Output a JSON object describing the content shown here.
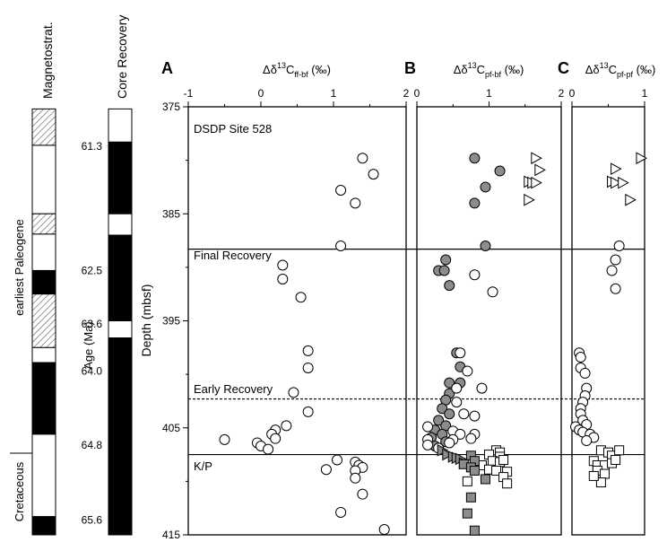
{
  "figure": {
    "left_strip": {
      "magnetostrat_label": "Magnetostrat.",
      "core_recovery_label": "Core Recovery",
      "paleogene_label": "earliest Paleogene",
      "cretaceous_label": "Cretaceous",
      "age_label": "Age (Ma)",
      "ages": [
        "61.3",
        "62.5",
        "63.6",
        "64.0",
        "64.8",
        "65.6"
      ]
    },
    "y_axis": {
      "label": "Depth (mbsf)",
      "ticks": [
        "375",
        "385",
        "395",
        "405",
        "415"
      ]
    },
    "annotations": {
      "site": "DSDP Site 528",
      "final_recovery": "Final Recovery",
      "early_recovery": "Early Recovery",
      "kp": "K/P"
    },
    "panels": [
      {
        "letter": "A",
        "title_main": "Δδ",
        "title_sup": "13",
        "title_c": "C",
        "title_sub": "ff-bf",
        "title_unit": " (‰)",
        "ticks": [
          "-1",
          "0",
          "1",
          "2"
        ]
      },
      {
        "letter": "B",
        "title_main": "Δδ",
        "title_sup": "13",
        "title_c": "C",
        "title_sub": "pf-bf",
        "title_unit": " (‰)",
        "ticks": [
          "0",
          "1",
          "2"
        ]
      },
      {
        "letter": "C",
        "title_main": "Δδ",
        "title_sup": "13",
        "title_c": "C",
        "title_sub": "pf-pf",
        "title_unit": " (‰)",
        "ticks": [
          "0",
          "1"
        ]
      }
    ]
  },
  "colors": {
    "gray_fill": "#8c8c8c",
    "hatch": "#555555",
    "black": "#000000",
    "white": "#ffffff"
  },
  "chart_data": {
    "type": "scatter",
    "ylim": [
      375,
      415
    ],
    "y_inverted": true,
    "horizontal_lines": [
      {
        "depth": 388.3,
        "style": "solid",
        "label": "Final Recovery"
      },
      {
        "depth": 402.3,
        "style": "dashed",
        "label": "Early Recovery"
      },
      {
        "depth": 407.5,
        "style": "solid",
        "label": "K/P"
      }
    ],
    "age_depths": [
      {
        "age": "61.3",
        "depth": 378.7
      },
      {
        "age": "62.5",
        "depth": 390.3
      },
      {
        "age": "63.6",
        "depth": 395.3
      },
      {
        "age": "64.0",
        "depth": 399.7
      },
      {
        "age": "64.8",
        "depth": 406.6
      },
      {
        "age": "65.6",
        "depth": 413.6
      }
    ],
    "magnetostrat": [
      {
        "top": 375.2,
        "bottom": 378.6,
        "state": "hatched"
      },
      {
        "top": 378.6,
        "bottom": 385.0,
        "state": "white"
      },
      {
        "top": 385.0,
        "bottom": 386.9,
        "state": "hatched"
      },
      {
        "top": 386.9,
        "bottom": 390.3,
        "state": "white"
      },
      {
        "top": 390.3,
        "bottom": 392.5,
        "state": "black"
      },
      {
        "top": 392.5,
        "bottom": 397.5,
        "state": "hatched"
      },
      {
        "top": 397.5,
        "bottom": 398.9,
        "state": "white"
      },
      {
        "top": 398.9,
        "bottom": 405.6,
        "state": "black"
      },
      {
        "top": 405.6,
        "bottom": 413.3,
        "state": "white"
      },
      {
        "top": 413.3,
        "bottom": 415.0,
        "state": "black"
      }
    ],
    "core_recovery": [
      {
        "top": 375.2,
        "bottom": 378.3,
        "state": "white"
      },
      {
        "top": 378.3,
        "bottom": 385.0,
        "state": "black"
      },
      {
        "top": 385.0,
        "bottom": 387.0,
        "state": "white"
      },
      {
        "top": 387.0,
        "bottom": 395.0,
        "state": "black"
      },
      {
        "top": 395.0,
        "bottom": 396.6,
        "state": "white"
      },
      {
        "top": 396.6,
        "bottom": 415.0,
        "state": "black"
      }
    ],
    "panels": [
      {
        "id": "A",
        "xlim": [
          -1,
          2
        ],
        "series": [
          {
            "marker": "circle",
            "fill": "white",
            "points": [
              [
                1.4,
                379.8
              ],
              [
                1.55,
                381.3
              ],
              [
                1.1,
                382.8
              ],
              [
                1.3,
                384.0
              ],
              [
                1.1,
                388.0
              ],
              [
                0.3,
                389.8
              ],
              [
                0.3,
                391.1
              ],
              [
                0.55,
                392.8
              ],
              [
                0.65,
                397.8
              ],
              [
                0.65,
                399.4
              ],
              [
                0.45,
                401.7
              ],
              [
                0.65,
                403.5
              ],
              [
                0.35,
                404.8
              ],
              [
                0.2,
                405.2
              ],
              [
                0.15,
                405.6
              ],
              [
                0.2,
                406.0
              ],
              [
                -0.5,
                406.1
              ],
              [
                -0.05,
                406.4
              ],
              [
                0.0,
                406.7
              ],
              [
                0.1,
                407.0
              ],
              [
                1.05,
                408.0
              ],
              [
                1.3,
                408.2
              ],
              [
                1.35,
                408.5
              ],
              [
                1.4,
                408.7
              ],
              [
                0.9,
                408.9
              ],
              [
                1.3,
                409.0
              ],
              [
                1.3,
                409.7
              ],
              [
                1.4,
                411.2
              ],
              [
                1.1,
                412.9
              ],
              [
                1.7,
                414.5
              ]
            ]
          }
        ]
      },
      {
        "id": "B",
        "xlim": [
          0,
          2
        ],
        "series": [
          {
            "marker": "circle",
            "fill": "gray",
            "points": [
              [
                0.8,
                379.8
              ],
              [
                1.15,
                381.0
              ],
              [
                0.95,
                382.5
              ],
              [
                0.8,
                384.0
              ],
              [
                0.95,
                388.0
              ],
              [
                0.4,
                389.3
              ],
              [
                0.3,
                390.3
              ],
              [
                0.38,
                390.3
              ],
              [
                0.45,
                391.7
              ],
              [
                0.55,
                398.0
              ],
              [
                0.6,
                399.3
              ],
              [
                0.45,
                400.8
              ],
              [
                0.6,
                400.8
              ],
              [
                0.45,
                401.8
              ],
              [
                0.4,
                402.4
              ],
              [
                0.35,
                403.2
              ],
              [
                0.45,
                403.7
              ],
              [
                0.3,
                404.3
              ],
              [
                0.4,
                404.8
              ],
              [
                0.25,
                405.2
              ],
              [
                0.35,
                405.6
              ],
              [
                0.2,
                405.9
              ],
              [
                0.4,
                406.3
              ],
              [
                0.25,
                406.7
              ]
            ]
          },
          {
            "marker": "circle",
            "fill": "white",
            "points": [
              [
                0.8,
                390.7
              ],
              [
                1.05,
                392.3
              ],
              [
                0.6,
                398.0
              ],
              [
                0.7,
                399.7
              ],
              [
                0.55,
                401.3
              ],
              [
                0.9,
                401.3
              ],
              [
                0.55,
                402.6
              ],
              [
                0.65,
                403.7
              ],
              [
                0.8,
                403.9
              ],
              [
                0.15,
                404.9
              ],
              [
                0.5,
                405.3
              ],
              [
                0.6,
                405.6
              ],
              [
                0.8,
                405.6
              ],
              [
                0.75,
                406.0
              ],
              [
                0.15,
                406.1
              ],
              [
                0.5,
                406.1
              ],
              [
                0.45,
                406.4
              ],
              [
                0.15,
                406.6
              ],
              [
                0.3,
                406.9
              ]
            ]
          },
          {
            "marker": "triangle",
            "fill": "white",
            "points": [
              [
                1.65,
                379.8
              ],
              [
                1.7,
                380.9
              ],
              [
                1.55,
                382.0
              ],
              [
                1.6,
                382.1
              ],
              [
                1.65,
                382.1
              ],
              [
                1.55,
                383.7
              ]
            ]
          },
          {
            "marker": "triangle",
            "fill": "gray",
            "points": [
              [
                0.35,
                407.1
              ],
              [
                0.42,
                407.5
              ],
              [
                0.5,
                407.7
              ],
              [
                0.55,
                407.8
              ],
              [
                0.6,
                407.9
              ],
              [
                0.65,
                408.3
              ]
            ]
          },
          {
            "marker": "square",
            "fill": "white",
            "points": [
              [
                1.1,
                407.1
              ],
              [
                1.15,
                407.3
              ],
              [
                1.0,
                407.5
              ],
              [
                1.15,
                407.7
              ],
              [
                1.05,
                408.1
              ],
              [
                1.15,
                408.2
              ],
              [
                1.2,
                408.0
              ],
              [
                0.9,
                408.5
              ],
              [
                1.0,
                408.9
              ],
              [
                1.1,
                409.0
              ],
              [
                1.25,
                409.1
              ],
              [
                1.2,
                409.6
              ],
              [
                1.25,
                410.2
              ],
              [
                0.7,
                410.0
              ]
            ]
          },
          {
            "marker": "square",
            "fill": "gray",
            "points": [
              [
                0.75,
                407.6
              ],
              [
                0.8,
                408.1
              ],
              [
                0.65,
                408.4
              ],
              [
                0.75,
                408.7
              ],
              [
                0.8,
                409.0
              ],
              [
                0.95,
                409.8
              ],
              [
                0.75,
                411.5
              ],
              [
                0.7,
                413.0
              ],
              [
                0.8,
                414.6
              ]
            ]
          }
        ]
      },
      {
        "id": "C",
        "xlim": [
          0,
          1
        ],
        "series": [
          {
            "marker": "triangle",
            "fill": "white",
            "points": [
              [
                0.95,
                379.8
              ],
              [
                0.6,
                380.8
              ],
              [
                0.55,
                382.0
              ],
              [
                0.6,
                382.1
              ],
              [
                0.7,
                382.1
              ],
              [
                0.8,
                383.7
              ]
            ]
          },
          {
            "marker": "circle",
            "fill": "white",
            "points": [
              [
                0.65,
                388.0
              ],
              [
                0.6,
                389.3
              ],
              [
                0.55,
                390.3
              ],
              [
                0.6,
                392.0
              ],
              [
                0.1,
                398.0
              ],
              [
                0.12,
                398.4
              ],
              [
                0.12,
                399.4
              ],
              [
                0.18,
                399.9
              ],
              [
                0.2,
                401.3
              ],
              [
                0.18,
                402.0
              ],
              [
                0.15,
                402.6
              ],
              [
                0.12,
                403.2
              ],
              [
                0.12,
                403.7
              ],
              [
                0.15,
                404.3
              ],
              [
                0.2,
                404.7
              ],
              [
                0.05,
                404.9
              ],
              [
                0.1,
                405.2
              ],
              [
                0.15,
                405.4
              ],
              [
                0.25,
                405.6
              ],
              [
                0.3,
                405.9
              ],
              [
                0.2,
                406.2
              ]
            ]
          },
          {
            "marker": "square",
            "fill": "white",
            "points": [
              [
                0.4,
                407.1
              ],
              [
                0.5,
                407.3
              ],
              [
                0.55,
                407.6
              ],
              [
                0.65,
                407.1
              ],
              [
                0.3,
                408.1
              ],
              [
                0.35,
                408.5
              ],
              [
                0.45,
                408.5
              ],
              [
                0.55,
                408.3
              ],
              [
                0.6,
                408.0
              ],
              [
                0.35,
                409.0
              ],
              [
                0.45,
                409.3
              ],
              [
                0.4,
                410.1
              ],
              [
                0.3,
                409.5
              ]
            ]
          }
        ]
      }
    ]
  }
}
